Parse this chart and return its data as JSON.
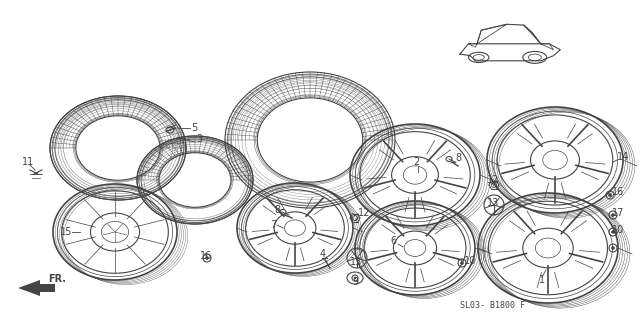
{
  "bg_color": "#ffffff",
  "line_color": "#444444",
  "fig_width": 6.4,
  "fig_height": 3.19,
  "dpi": 100,
  "reference_code": "SL03- B1800 F",
  "fr_label": "FR."
}
